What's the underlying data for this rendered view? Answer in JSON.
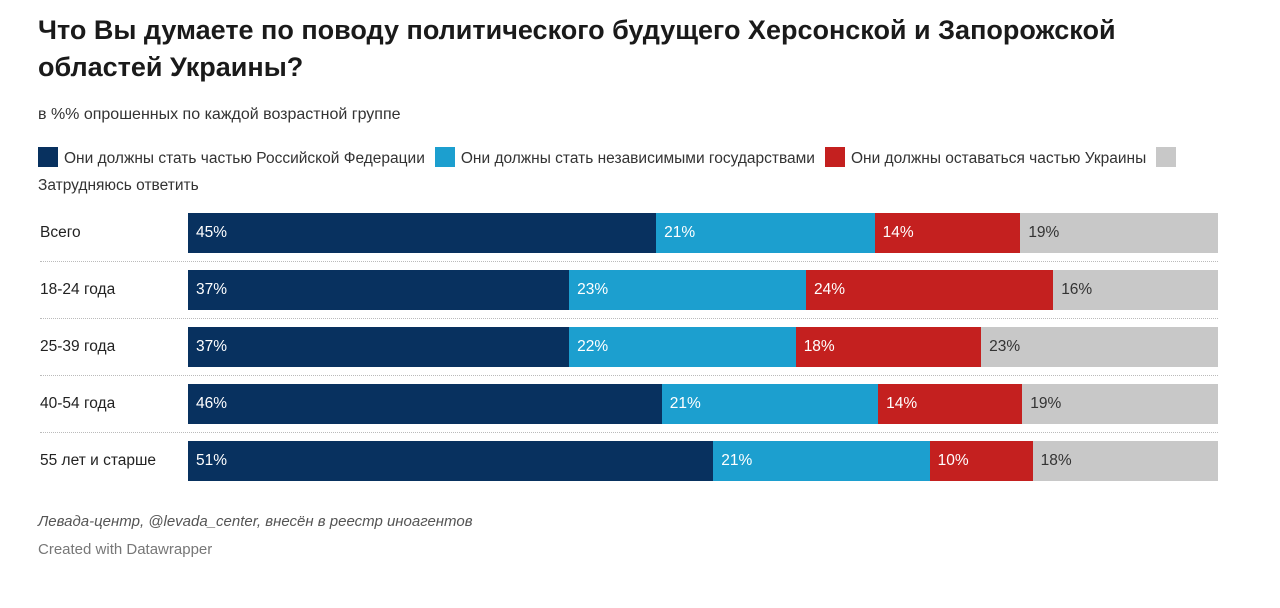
{
  "title": "Что Вы думаете по поводу политического будущего Херсонской и Запорожской областей Украины?",
  "subtitle": "в %% опрошенных по каждой возрастной группе",
  "source": "Левада-центр, @levada_center, внесён в реестр иноагентов",
  "credit": "Created with Datawrapper",
  "chart_data": {
    "type": "bar",
    "stacked": true,
    "orientation": "horizontal",
    "categories": [
      "Всего",
      "18-24 года",
      "25-39 года",
      "40-54 года",
      "55 лет и старше"
    ],
    "series": [
      {
        "name": "Они должны стать частью Российской Федерации",
        "color": "#08315f",
        "values": [
          45,
          37,
          37,
          46,
          51
        ]
      },
      {
        "name": "Они должны стать независимыми государствами",
        "color": "#1c9fcf",
        "values": [
          21,
          23,
          22,
          21,
          21
        ]
      },
      {
        "name": "Они должны оставаться частью Украины",
        "color": "#c4201f",
        "values": [
          14,
          24,
          18,
          14,
          10
        ]
      },
      {
        "name": "Затрудняюсь ответить",
        "color": "#c8c8c8",
        "values": [
          19,
          16,
          23,
          19,
          18
        ]
      }
    ],
    "unit": "%"
  }
}
